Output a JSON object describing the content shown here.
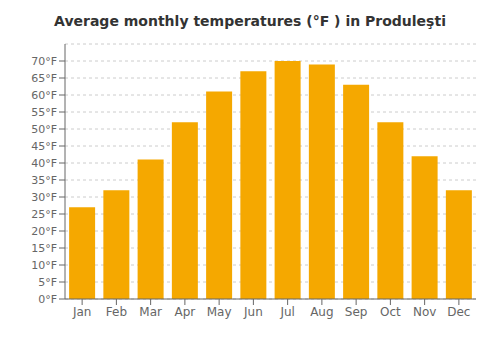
{
  "chart_data": {
    "type": "bar",
    "title": "Average monthly temperatures (°F ) in Produleşti",
    "categories": [
      "Jan",
      "Feb",
      "Mar",
      "Apr",
      "May",
      "Jun",
      "Jul",
      "Aug",
      "Sep",
      "Oct",
      "Nov",
      "Dec"
    ],
    "values": [
      27,
      32,
      41,
      52,
      61,
      67,
      70,
      69,
      63,
      52,
      42,
      32
    ],
    "color": "#F5A800",
    "ylim": [
      0,
      75
    ],
    "yticks": [
      {
        "value": 0,
        "label": "0°F"
      },
      {
        "value": 5,
        "label": "5°F"
      },
      {
        "value": 10,
        "label": "10°F"
      },
      {
        "value": 15,
        "label": "15°F"
      },
      {
        "value": 20,
        "label": "20°F"
      },
      {
        "value": 25,
        "label": "25°F"
      },
      {
        "value": 30,
        "label": "30°F"
      },
      {
        "value": 35,
        "label": "35°F"
      },
      {
        "value": 40,
        "label": "40°F"
      },
      {
        "value": 45,
        "label": "45°F"
      },
      {
        "value": 50,
        "label": "50°F"
      },
      {
        "value": 55,
        "label": "55°F"
      },
      {
        "value": 60,
        "label": "60°F"
      },
      {
        "value": 65,
        "label": "65°F"
      },
      {
        "value": 70,
        "label": "70°F"
      }
    ],
    "grid": true
  }
}
